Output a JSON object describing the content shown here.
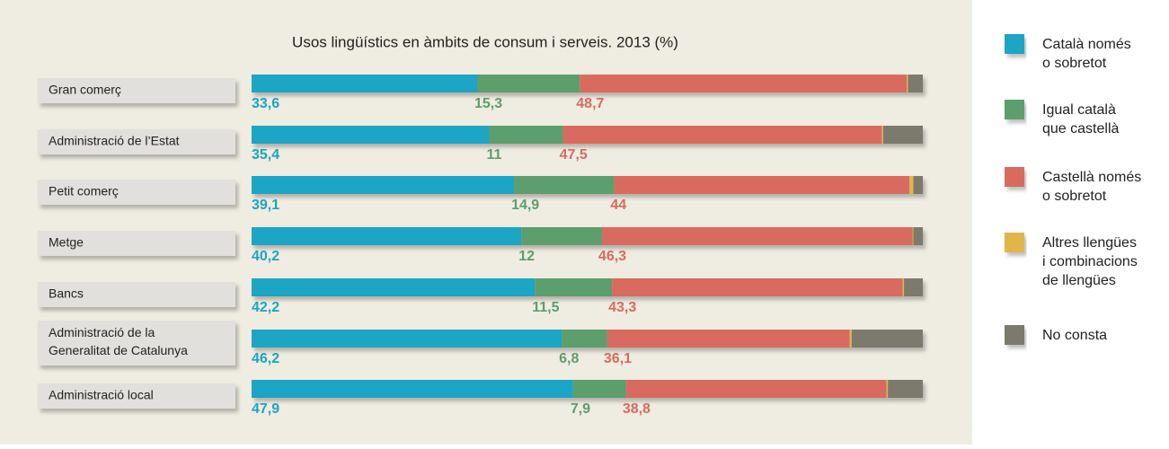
{
  "chart_data": {
    "type": "stacked_bar_horizontal",
    "title": "Usos lingüístics en àmbits de consum i serveis. 2013 (%)",
    "categories": [
      "Gran comerç",
      "Administració de l’Estat",
      "Petit comerç",
      "Metge",
      "Bancs",
      "Administració de la\nGeneralitat de Catalunya",
      "Administració local"
    ],
    "xlim": [
      0,
      100
    ],
    "series": [
      {
        "name": "Català només\no sobretot",
        "color": "#1aa5c4",
        "values": [
          33.6,
          35.4,
          39.1,
          40.2,
          42.2,
          46.2,
          47.9
        ],
        "value_labels": [
          "33,6",
          "35,4",
          "39,1",
          "40,2",
          "42,2",
          "46,2",
          "47,9"
        ]
      },
      {
        "name": "Igual català\nque castellà",
        "color": "#5c9e6c",
        "values": [
          15.3,
          11,
          14.9,
          12,
          11.5,
          6.8,
          7.9
        ],
        "value_labels": [
          "15,3",
          "11",
          "14,9",
          "12",
          "11,5",
          "6,8",
          "7,9"
        ]
      },
      {
        "name": "Castellà només\no sobretot",
        "color": "#d96a5e",
        "values": [
          48.7,
          47.5,
          44,
          46.3,
          43.3,
          36.1,
          38.8
        ],
        "value_labels": [
          "48,7",
          "47,5",
          "44",
          "46,3",
          "43,3",
          "36,1",
          "38,8"
        ]
      },
      {
        "name": "Altres llengües\ni combinacions\nde llengües",
        "color": "#e0b64a",
        "values": [
          0.2,
          0.2,
          0.6,
          0.1,
          0.2,
          0.3,
          0.2
        ]
      },
      {
        "name": "No consta",
        "color": "#7c7a6c",
        "values": [
          2.2,
          5.9,
          1.4,
          1.4,
          2.8,
          10.6,
          5.2
        ]
      }
    ]
  }
}
